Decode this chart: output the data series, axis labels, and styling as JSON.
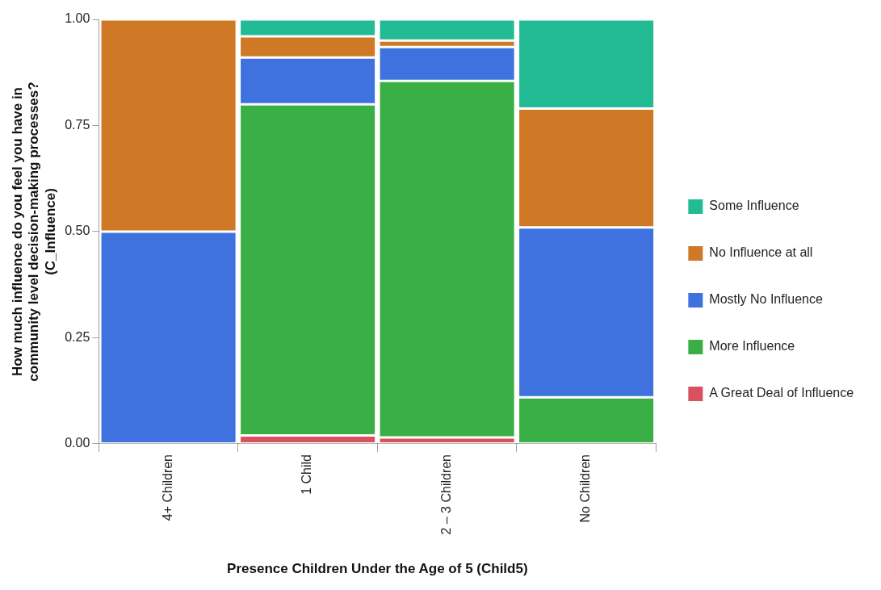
{
  "chart_data": {
    "type": "bar",
    "stacked": true,
    "xlabel": "Presence Children Under the Age of 5 (Child5)",
    "ylabel": "How much influence do you feel you have in community level decision-making processes? (C_Influence)",
    "categories": [
      "4+ Children",
      "1 Child",
      "2 – 3 Children",
      "No Children"
    ],
    "series": [
      {
        "name": "A Great Deal of Influence",
        "color": "#d9505f",
        "values": [
          0,
          0.02,
          0.015,
          0
        ]
      },
      {
        "name": "More Influence",
        "color": "#3aaf45",
        "values": [
          0,
          0.78,
          0.84,
          0.11
        ]
      },
      {
        "name": "Mostly No Influence",
        "color": "#3f72de",
        "values": [
          0.5,
          0.11,
          0.08,
          0.4
        ]
      },
      {
        "name": "No Influence at all",
        "color": "#cf7927",
        "values": [
          0.5,
          0.05,
          0.015,
          0.28
        ]
      },
      {
        "name": "Some Influence",
        "color": "#22bb93",
        "values": [
          0,
          0.04,
          0.05,
          0.21
        ]
      }
    ],
    "ylim": [
      0,
      1
    ],
    "yticks": [
      {
        "value": 0,
        "label": "0.00"
      },
      {
        "value": 0.25,
        "label": "0.25"
      },
      {
        "value": 0.5,
        "label": "0.50"
      },
      {
        "value": 0.75,
        "label": "0.75"
      },
      {
        "value": 1,
        "label": "1.00"
      }
    ],
    "grid": false,
    "legend": "right"
  }
}
